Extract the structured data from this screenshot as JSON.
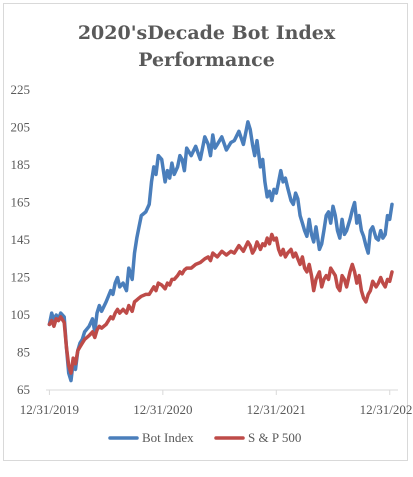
{
  "chart_data": {
    "type": "line",
    "title_lines": [
      "2020'sDecade Bot Index",
      "Performance"
    ],
    "x_tick_labels": [
      "12/31/2019",
      "12/31/2020",
      "12/31/2021",
      "12/31/202"
    ],
    "x_ticks": [
      2020.0,
      2021.0,
      2022.0,
      2023.0
    ],
    "xlim": [
      2019.97,
      2023.02
    ],
    "ylim": [
      65,
      225
    ],
    "y_ticks": [
      65,
      85,
      105,
      125,
      145,
      165,
      185,
      205,
      225
    ],
    "grid": false,
    "legend_position": "bottom",
    "series": [
      {
        "name": "Bot Index",
        "color": "#4a7ebb",
        "x": [
          2020.0,
          2020.02,
          2020.04,
          2020.06,
          2020.08,
          2020.1,
          2020.13,
          2020.15,
          2020.17,
          2020.19,
          2020.21,
          2020.23,
          2020.25,
          2020.27,
          2020.29,
          2020.31,
          2020.35,
          2020.38,
          2020.4,
          2020.42,
          2020.44,
          2020.46,
          2020.5,
          2020.54,
          2020.56,
          2020.58,
          2020.6,
          2020.62,
          2020.65,
          2020.68,
          2020.7,
          2020.73,
          2020.75,
          2020.77,
          2020.79,
          2020.81,
          2020.85,
          2020.88,
          2020.9,
          2020.92,
          2020.94,
          2020.96,
          2020.99,
          2021.02,
          2021.04,
          2021.06,
          2021.08,
          2021.1,
          2021.13,
          2021.15,
          2021.17,
          2021.19,
          2021.21,
          2021.25,
          2021.29,
          2021.33,
          2021.37,
          2021.4,
          2021.42,
          2021.44,
          2021.46,
          2021.48,
          2021.52,
          2021.56,
          2021.6,
          2021.63,
          2021.67,
          2021.71,
          2021.75,
          2021.77,
          2021.79,
          2021.81,
          2021.83,
          2021.86,
          2021.88,
          2021.9,
          2021.92,
          2021.94,
          2021.96,
          2021.98,
          2022.0,
          2022.02,
          2022.04,
          2022.06,
          2022.08,
          2022.1,
          2022.13,
          2022.15,
          2022.17,
          2022.19,
          2022.21,
          2022.23,
          2022.25,
          2022.27,
          2022.29,
          2022.31,
          2022.33,
          2022.35,
          2022.38,
          2022.4,
          2022.42,
          2022.44,
          2022.46,
          2022.48,
          2022.5,
          2022.52,
          2022.54,
          2022.56,
          2022.58,
          2022.6,
          2022.62,
          2022.65,
          2022.67,
          2022.69,
          2022.71,
          2022.73,
          2022.75,
          2022.77,
          2022.79,
          2022.81,
          2022.83,
          2022.85,
          2022.88,
          2022.9,
          2022.92,
          2022.94,
          2022.96,
          2022.98,
          2023.0,
          2023.02
        ],
        "y": [
          100,
          106,
          102,
          105,
          103,
          106,
          104,
          88,
          74,
          70,
          80,
          76,
          86,
          90,
          92,
          96,
          99,
          103,
          96,
          106,
          110,
          107,
          112,
          118,
          116,
          122,
          125,
          120,
          122,
          118,
          130,
          124,
          138,
          146,
          152,
          158,
          160,
          164,
          176,
          184,
          180,
          190,
          188,
          176,
          182,
          178,
          186,
          180,
          184,
          190,
          188,
          182,
          194,
          190,
          195,
          188,
          200,
          196,
          190,
          201,
          194,
          196,
          200,
          193,
          197,
          198,
          203,
          196,
          208,
          204,
          196,
          190,
          198,
          184,
          188,
          176,
          168,
          171,
          166,
          172,
          170,
          176,
          182,
          176,
          178,
          173,
          166,
          164,
          170,
          167,
          158,
          154,
          150,
          147,
          156,
          148,
          144,
          152,
          140,
          143,
          150,
          158,
          160,
          154,
          163,
          158,
          150,
          146,
          156,
          148,
          150,
          156,
          161,
          165,
          154,
          158,
          150,
          147,
          142,
          138,
          150,
          152,
          146,
          145,
          150,
          146,
          148,
          158,
          156,
          164
        ],
        "data_x_note": ""
      },
      {
        "name": "S & P 500",
        "color": "#be4b48",
        "x": [
          2020.0,
          2020.02,
          2020.04,
          2020.06,
          2020.08,
          2020.1,
          2020.13,
          2020.15,
          2020.17,
          2020.19,
          2020.21,
          2020.23,
          2020.25,
          2020.27,
          2020.29,
          2020.31,
          2020.35,
          2020.38,
          2020.4,
          2020.42,
          2020.44,
          2020.46,
          2020.5,
          2020.54,
          2020.56,
          2020.58,
          2020.6,
          2020.62,
          2020.65,
          2020.68,
          2020.7,
          2020.73,
          2020.75,
          2020.77,
          2020.79,
          2020.81,
          2020.85,
          2020.88,
          2020.9,
          2020.92,
          2020.94,
          2020.96,
          2020.99,
          2021.02,
          2021.04,
          2021.06,
          2021.08,
          2021.1,
          2021.13,
          2021.15,
          2021.17,
          2021.19,
          2021.21,
          2021.25,
          2021.29,
          2021.33,
          2021.37,
          2021.4,
          2021.42,
          2021.44,
          2021.46,
          2021.48,
          2021.52,
          2021.56,
          2021.6,
          2021.63,
          2021.67,
          2021.71,
          2021.75,
          2021.77,
          2021.79,
          2021.81,
          2021.83,
          2021.86,
          2021.88,
          2021.9,
          2021.92,
          2021.94,
          2021.96,
          2021.98,
          2022.0,
          2022.02,
          2022.04,
          2022.06,
          2022.08,
          2022.1,
          2022.13,
          2022.15,
          2022.17,
          2022.19,
          2022.21,
          2022.23,
          2022.25,
          2022.27,
          2022.29,
          2022.31,
          2022.33,
          2022.35,
          2022.38,
          2022.4,
          2022.42,
          2022.44,
          2022.46,
          2022.48,
          2022.5,
          2022.52,
          2022.54,
          2022.56,
          2022.58,
          2022.6,
          2022.62,
          2022.65,
          2022.67,
          2022.69,
          2022.71,
          2022.73,
          2022.75,
          2022.77,
          2022.79,
          2022.81,
          2022.83,
          2022.85,
          2022.88,
          2022.9,
          2022.92,
          2022.94,
          2022.96,
          2022.98,
          2023.0,
          2023.02
        ],
        "y": [
          100,
          102,
          99,
          103,
          102,
          104,
          101,
          88,
          78,
          74,
          82,
          79,
          86,
          88,
          90,
          92,
          94,
          96,
          93,
          97,
          99,
          98,
          100,
          104,
          103,
          106,
          108,
          106,
          108,
          106,
          110,
          107,
          112,
          113,
          114,
          115,
          116,
          116,
          118,
          120,
          118,
          122,
          121,
          119,
          122,
          121,
          124,
          124,
          126,
          128,
          127,
          129,
          130,
          130,
          132,
          133,
          135,
          136,
          134,
          138,
          137,
          136,
          139,
          137,
          139,
          138,
          142,
          139,
          144,
          142,
          138,
          140,
          144,
          140,
          143,
          142,
          146,
          143,
          148,
          145,
          146,
          140,
          137,
          140,
          136,
          138,
          140,
          136,
          138,
          135,
          132,
          136,
          130,
          128,
          132,
          126,
          118,
          124,
          128,
          120,
          124,
          126,
          124,
          130,
          128,
          126,
          120,
          118,
          126,
          124,
          120,
          128,
          132,
          128,
          122,
          126,
          118,
          114,
          112,
          116,
          118,
          123,
          120,
          122,
          125,
          122,
          120,
          124,
          123,
          128
        ],
        "data_x_note": ""
      }
    ]
  }
}
